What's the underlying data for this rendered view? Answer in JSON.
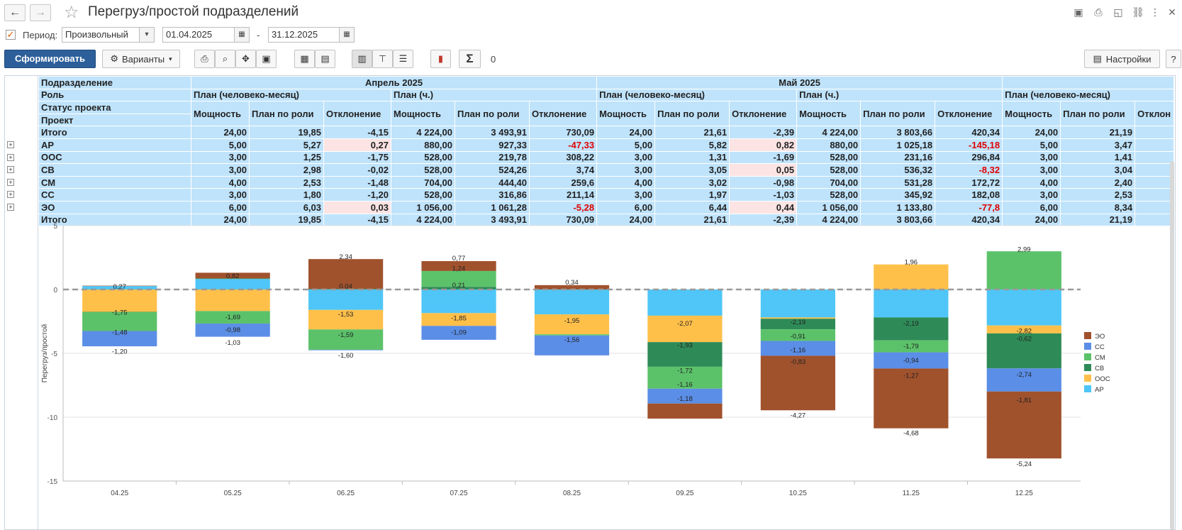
{
  "window": {
    "title": "Перегруз/простой подразделений"
  },
  "period": {
    "label": "Период:",
    "mode": "Произвольный",
    "from": "01.04.2025",
    "dash": "-",
    "to": "31.12.2025"
  },
  "toolbar": {
    "generate_label": "Сформировать",
    "variants_label": "Варианты",
    "sum_value": "0",
    "settings_label": "Настройки",
    "help_label": "?"
  },
  "colors": {
    "accent": "#2d5f9a",
    "header": "#bfe3fb",
    "negative": "#e00000",
    "warn_bg": "#fce4e4"
  },
  "table": {
    "header_rows": [
      {
        "label": "Подразделение",
        "groups": [
          "Апрель 2025",
          "Май 2025",
          ""
        ]
      },
      {
        "label": "Роль",
        "subgroups": [
          "План (человеко-месяц)",
          "План (ч.)",
          "План (человеко-месяц)",
          "План (ч.)",
          "План (человеко-месяц)"
        ]
      },
      {
        "label": "Статус проекта",
        "cols": [
          "Мощность",
          "План по роли",
          "Отклонение",
          "Мощность",
          "План по роли",
          "Отклонение",
          "Мощность",
          "План по роли",
          "Отклонение",
          "Мощность",
          "План по роли",
          "Отклонение",
          "Мощность",
          "План по роли",
          "Отклон"
        ]
      },
      {
        "label": "Проект"
      }
    ],
    "rows": [
      {
        "name": "Итого",
        "tree": false,
        "values": [
          "24,00",
          "19,85",
          "-4,15",
          "4 224,00",
          "3 493,91",
          "730,09",
          "24,00",
          "21,61",
          "-2,39",
          "4 224,00",
          "3 803,66",
          "420,34",
          "24,00",
          "21,19",
          ""
        ]
      },
      {
        "name": "АР",
        "tree": true,
        "values": [
          "5,00",
          "5,27",
          "0,27",
          "880,00",
          "927,33",
          "-47,33",
          "5,00",
          "5,82",
          "0,82",
          "880,00",
          "1 025,18",
          "-145,18",
          "5,00",
          "3,47",
          ""
        ]
      },
      {
        "name": "ООС",
        "tree": true,
        "values": [
          "3,00",
          "1,25",
          "-1,75",
          "528,00",
          "219,78",
          "308,22",
          "3,00",
          "1,31",
          "-1,69",
          "528,00",
          "231,16",
          "296,84",
          "3,00",
          "1,41",
          ""
        ]
      },
      {
        "name": "СВ",
        "tree": true,
        "values": [
          "3,00",
          "2,98",
          "-0,02",
          "528,00",
          "524,26",
          "3,74",
          "3,00",
          "3,05",
          "0,05",
          "528,00",
          "536,32",
          "-8,32",
          "3,00",
          "3,04",
          ""
        ]
      },
      {
        "name": "СМ",
        "tree": true,
        "values": [
          "4,00",
          "2,53",
          "-1,48",
          "704,00",
          "444,40",
          "259,6",
          "4,00",
          "3,02",
          "-0,98",
          "704,00",
          "531,28",
          "172,72",
          "4,00",
          "2,40",
          ""
        ]
      },
      {
        "name": "СС",
        "tree": true,
        "values": [
          "3,00",
          "1,80",
          "-1,20",
          "528,00",
          "316,86",
          "211,14",
          "3,00",
          "1,97",
          "-1,03",
          "528,00",
          "345,92",
          "182,08",
          "3,00",
          "2,53",
          ""
        ]
      },
      {
        "name": "ЭО",
        "tree": true,
        "values": [
          "6,00",
          "6,03",
          "0,03",
          "1 056,00",
          "1 061,28",
          "-5,28",
          "6,00",
          "6,44",
          "0,44",
          "1 056,00",
          "1 133,80",
          "-77,8",
          "6,00",
          "8,34",
          ""
        ]
      },
      {
        "name": "Итого",
        "tree": false,
        "values": [
          "24,00",
          "19,85",
          "-4,15",
          "4 224,00",
          "3 493,91",
          "730,09",
          "24,00",
          "21,61",
          "-2,39",
          "4 224,00",
          "3 803,66",
          "420,34",
          "24,00",
          "21,19",
          ""
        ]
      }
    ],
    "pink_cells": [
      [
        1,
        2
      ],
      [
        1,
        8
      ],
      [
        3,
        8
      ],
      [
        6,
        2
      ],
      [
        6,
        8
      ]
    ],
    "red_cells": [
      [
        1,
        5
      ],
      [
        1,
        11
      ],
      [
        3,
        11
      ],
      [
        6,
        5
      ],
      [
        6,
        11
      ]
    ]
  },
  "chart_data": {
    "type": "bar",
    "stacked": true,
    "ylabel": "Перегруз/простой",
    "ylim": [
      -15,
      5
    ],
    "yticks": [
      5,
      0,
      -5,
      -10,
      -15
    ],
    "categories": [
      "04.25",
      "05.25",
      "06.25",
      "07.25",
      "08.25",
      "09.25",
      "10.25",
      "11.25",
      "12.25"
    ],
    "legend_position": "right",
    "series": [
      {
        "name": "ЭО",
        "color": "#a0522d",
        "values": [
          0.03,
          0.44,
          2.34,
          0.77,
          0.34,
          -1.18,
          -4.27,
          -4.68,
          -5.24
        ]
      },
      {
        "name": "СС",
        "color": "#5b8ee6",
        "values": [
          -1.2,
          -1.03,
          -0.04,
          -1.09,
          -1.56,
          -1.16,
          -1.16,
          -1.27,
          -1.81
        ]
      },
      {
        "name": "СМ",
        "color": "#5cc26a",
        "values": [
          -1.48,
          -0.98,
          -1.59,
          1.24,
          -0.09,
          -1.72,
          -0.91,
          -0.94,
          2.99
        ]
      },
      {
        "name": "СВ",
        "color": "#2e8b57",
        "values": [
          -0.02,
          0.05,
          0.04,
          0.21,
          0.0,
          -1.93,
          -0.83,
          -1.79,
          -2.74
        ]
      },
      {
        "name": "ООС",
        "color": "#ffc04a",
        "values": [
          -1.75,
          -1.69,
          -1.53,
          -1.0,
          -1.56,
          -2.07,
          -0.1,
          1.96,
          -0.62
        ]
      },
      {
        "name": "АР",
        "color": "#4fc6f7",
        "values": [
          0.27,
          0.82,
          -1.6,
          -1.85,
          -1.95,
          -2.05,
          -2.19,
          -2.19,
          -2.82
        ]
      }
    ],
    "labels": [
      [
        {
          "t": "0,27",
          "v": 0.27
        },
        {
          "t": "-1,75",
          "v": -1.75
        },
        {
          "t": "-1,48",
          "v": -3.3
        },
        {
          "t": "-1,20",
          "v": -4.8
        }
      ],
      [
        {
          "t": "0,82",
          "v": 1.1
        },
        {
          "t": "-1,69",
          "v": -2.1
        },
        {
          "t": "-0,98",
          "v": -3.1
        },
        {
          "t": "-1,03",
          "v": -4.1
        }
      ],
      [
        {
          "t": "2,34",
          "v": 2.6
        },
        {
          "t": "0,04",
          "v": 0.3
        },
        {
          "t": "-1,53",
          "v": -1.9
        },
        {
          "t": "-1,59",
          "v": -3.5
        },
        {
          "t": "-1,60",
          "v": -5.1
        }
      ],
      [
        {
          "t": "0,77",
          "v": 2.5
        },
        {
          "t": "1,24",
          "v": 1.7
        },
        {
          "t": "0,21",
          "v": 0.4
        },
        {
          "t": "-1,85",
          "v": -2.2
        },
        {
          "t": "-1,09",
          "v": -3.3
        }
      ],
      [
        {
          "t": "0,34",
          "v": 0.6
        },
        {
          "t": "-1,95",
          "v": -2.4
        },
        {
          "t": "-1,56",
          "v": -3.9
        }
      ],
      [
        {
          "t": "-2,07",
          "v": -2.6
        },
        {
          "t": "-1,93",
          "v": -4.3
        },
        {
          "t": "-1,72",
          "v": -6.3
        },
        {
          "t": "-1,16",
          "v": -7.4
        },
        {
          "t": "-1,18",
          "v": -8.5
        }
      ],
      [
        {
          "t": "-2,19",
          "v": -2.5
        },
        {
          "t": "-0,91",
          "v": -3.6
        },
        {
          "t": "-1,16",
          "v": -4.7
        },
        {
          "t": "-0,83",
          "v": -5.6
        },
        {
          "t": "-4,27",
          "v": -9.8
        }
      ],
      [
        {
          "t": "1,96",
          "v": 2.2
        },
        {
          "t": "-2,19",
          "v": -2.6
        },
        {
          "t": "-1,79",
          "v": -4.4
        },
        {
          "t": "-0,94",
          "v": -5.5
        },
        {
          "t": "-1,27",
          "v": -6.7
        },
        {
          "t": "-4,68",
          "v": -11.2
        }
      ],
      [
        {
          "t": "2,99",
          "v": 3.2
        },
        {
          "t": "-2,82",
          "v": -3.2
        },
        {
          "t": "-0,62",
          "v": -3.8
        },
        {
          "t": "-2,74",
          "v": -6.6
        },
        {
          "t": "-1,81",
          "v": -8.6
        },
        {
          "t": "-5,24",
          "v": -13.6
        }
      ]
    ]
  }
}
